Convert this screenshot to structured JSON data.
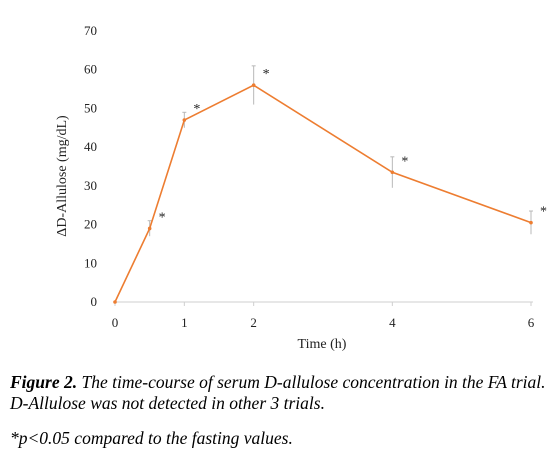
{
  "chart_data": {
    "type": "line",
    "x": [
      0,
      0.5,
      1,
      2,
      4,
      6
    ],
    "series": [
      {
        "values": [
          0,
          19,
          47,
          56,
          33.5,
          20.5
        ],
        "error": [
          0,
          2,
          2,
          5,
          4,
          3
        ],
        "significant": [
          false,
          true,
          true,
          true,
          true,
          true
        ],
        "color": "#ED7D31"
      }
    ],
    "xlabel": "Time (h)",
    "ylabel": "ΔD-Allulose (mg/dL)",
    "xticks": [
      0,
      1,
      2,
      4,
      6
    ],
    "yticks": [
      0,
      10,
      20,
      30,
      40,
      50,
      60,
      70
    ],
    "xlim": [
      0,
      6
    ],
    "ylim": [
      0,
      70
    ],
    "grid": false,
    "significance_marker": "*"
  },
  "caption": {
    "figure_label": "Figure 2.",
    "text": " The time-course of serum D-allulose concentration in the FA trial.  D-Allulose was not detected in other 3 trials.",
    "footnote": "*p<0.05 compared to the fasting values."
  }
}
